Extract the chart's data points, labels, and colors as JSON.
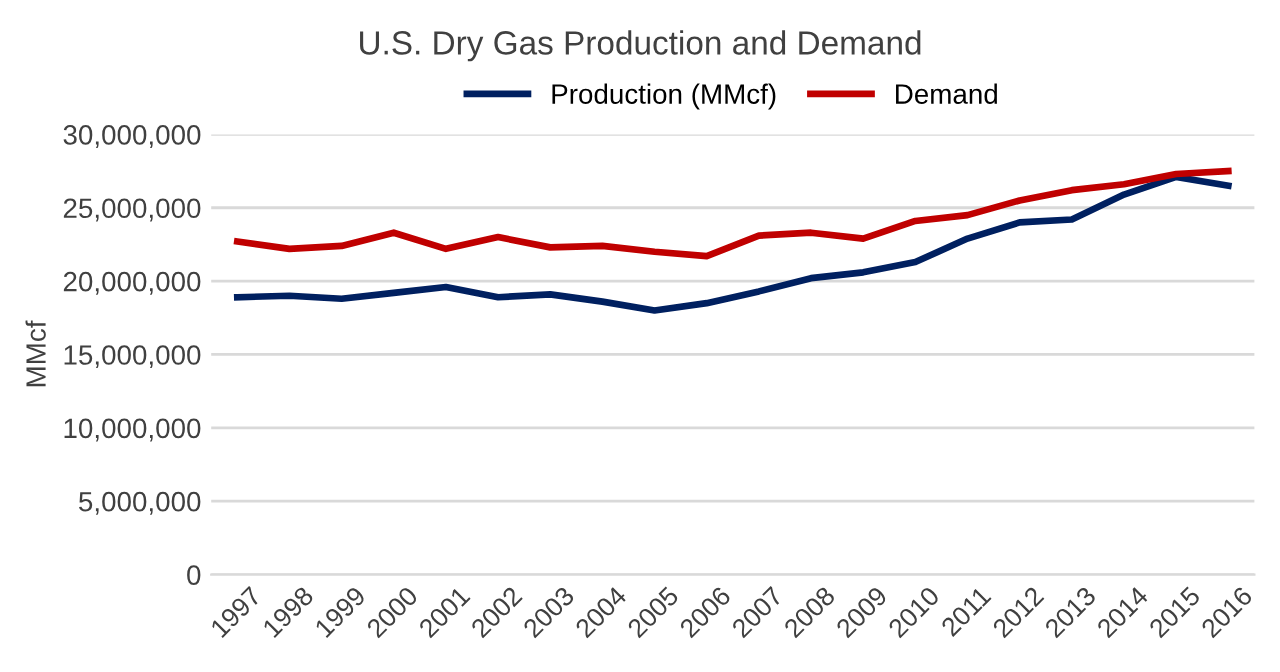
{
  "chart_data": {
    "type": "line",
    "title": "U.S. Dry Gas Production and Demand",
    "ylabel": "MMcf",
    "categories": [
      "1997",
      "1998",
      "1999",
      "2000",
      "2001",
      "2002",
      "2003",
      "2004",
      "2005",
      "2006",
      "2007",
      "2008",
      "2009",
      "2010",
      "2011",
      "2012",
      "2013",
      "2014",
      "2015",
      "2016"
    ],
    "series": [
      {
        "name": "Production (MMcf)",
        "color": "#002060",
        "values": [
          18900000,
          19000000,
          18800000,
          19200000,
          19600000,
          18900000,
          19100000,
          18600000,
          18000000,
          18500000,
          19300000,
          20200000,
          20600000,
          21300000,
          22900000,
          24000000,
          24200000,
          25900000,
          27100000,
          26500000
        ]
      },
      {
        "name": "Demand",
        "color": "#c00000",
        "values": [
          22700000,
          22200000,
          22400000,
          23300000,
          22200000,
          23000000,
          22300000,
          22400000,
          22000000,
          21700000,
          23100000,
          23300000,
          22900000,
          24100000,
          24500000,
          25500000,
          26200000,
          26600000,
          27300000,
          27500000
        ]
      }
    ],
    "ylim": [
      0,
      30000000
    ],
    "yticks": [
      {
        "value": 0,
        "label": "0"
      },
      {
        "value": 5000000,
        "label": "5,000,000"
      },
      {
        "value": 10000000,
        "label": "10,000,000"
      },
      {
        "value": 15000000,
        "label": "15,000,000"
      },
      {
        "value": 20000000,
        "label": "20,000,000"
      },
      {
        "value": 25000000,
        "label": "25,000,000"
      },
      {
        "value": 30000000,
        "label": "30,000,000"
      }
    ],
    "grid": "y",
    "legend": "top",
    "marker": "none",
    "line_style": "solid"
  }
}
